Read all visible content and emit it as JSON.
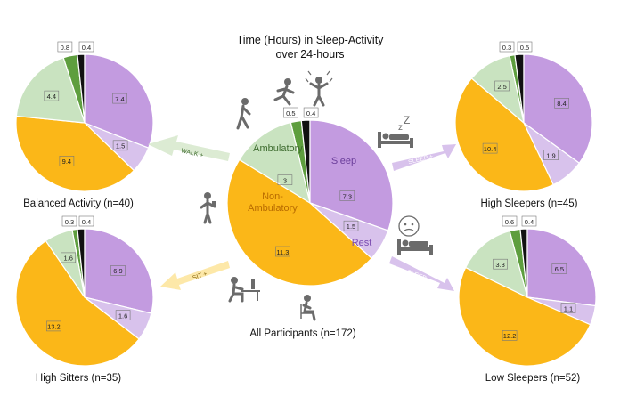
{
  "title": [
    "Time (Hours) in Sleep-Activity",
    "over 24-hours"
  ],
  "colors": {
    "sleep": "#C39BE0",
    "rest": "#D8C2EC",
    "non_ambulatory": "#FBB718",
    "ambulatory": "#C9E3C0",
    "walk": "#5E9E3E",
    "other": "#111111"
  },
  "chart_data": [
    {
      "type": "pie",
      "name": "All Participants",
      "caption": "All Participants (n=172)",
      "categories": [
        "Sleep",
        "Rest",
        "Non-Ambulatory",
        "Ambulatory",
        "",
        ""
      ],
      "values": [
        7.3,
        1.5,
        11.3,
        3.0,
        0.5,
        0.4
      ],
      "segment_labels": [
        "Sleep",
        "Rest",
        "Non-\nAmbulatory",
        "Ambulatory",
        "",
        ""
      ]
    },
    {
      "type": "pie",
      "name": "Balanced Activity",
      "caption": "Balanced Activity (n=40)",
      "categories": [
        "Sleep",
        "Rest",
        "Non-Ambulatory",
        "Ambulatory",
        "",
        ""
      ],
      "values": [
        7.4,
        1.5,
        9.4,
        4.4,
        0.8,
        0.4
      ]
    },
    {
      "type": "pie",
      "name": "High Sleepers",
      "caption": "High Sleepers (n=45)",
      "categories": [
        "Sleep",
        "Rest",
        "Non-Ambulatory",
        "Ambulatory",
        "",
        ""
      ],
      "values": [
        8.4,
        1.9,
        10.4,
        2.5,
        0.3,
        0.5
      ]
    },
    {
      "type": "pie",
      "name": "High Sitters",
      "caption": "High Sitters (n=35)",
      "categories": [
        "Sleep",
        "Rest",
        "Non-Ambulatory",
        "Ambulatory",
        "",
        ""
      ],
      "values": [
        6.9,
        1.6,
        13.2,
        1.6,
        0.3,
        0.4
      ]
    },
    {
      "type": "pie",
      "name": "Low Sleepers",
      "caption": "Low Sleepers (n=52)",
      "categories": [
        "Sleep",
        "Rest",
        "Non-Ambulatory",
        "Ambulatory",
        "",
        ""
      ],
      "values": [
        6.5,
        1.1,
        12.2,
        3.3,
        0.6,
        0.4
      ]
    }
  ],
  "arrows": [
    {
      "label": "WALK +"
    },
    {
      "label": "SLEEP +"
    },
    {
      "label": "SIT +"
    },
    {
      "label": "SLEEP -"
    }
  ],
  "icons": [
    "walking-person-icon",
    "jumping-person-icon",
    "stretching-person-icon",
    "standing-phone-person-icon",
    "sleeping-in-bed-icon",
    "desk-worker-icon",
    "seated-person-icon",
    "restless-sleep-icon"
  ]
}
